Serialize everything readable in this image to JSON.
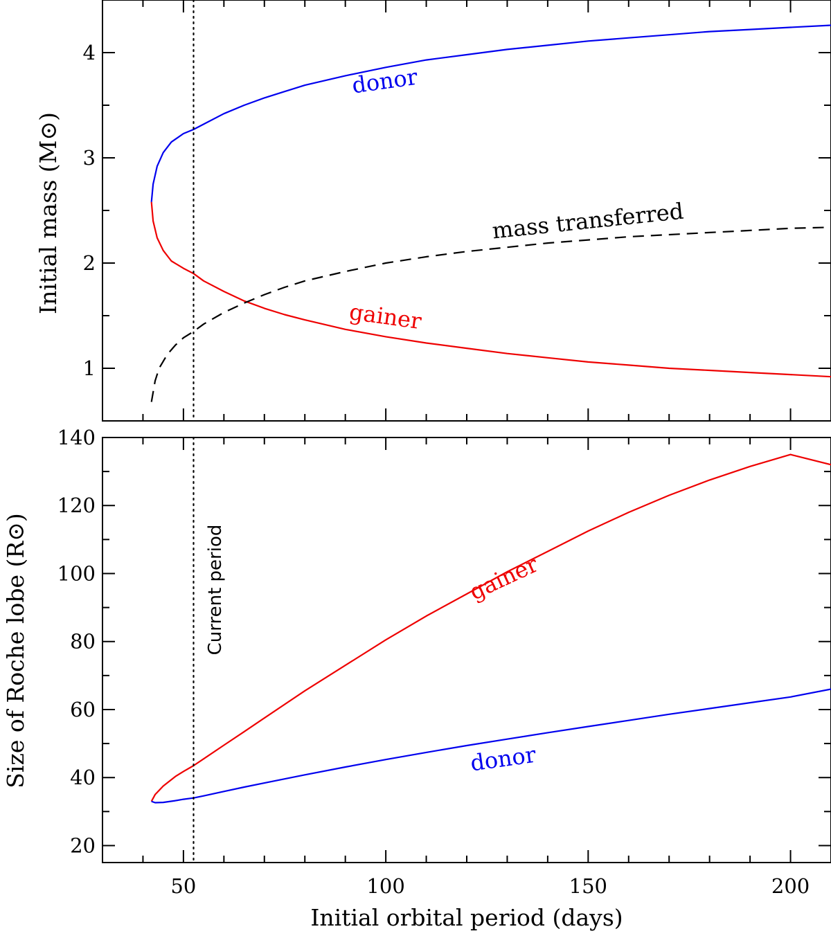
{
  "chart_data": [
    {
      "type": "line",
      "panel": "top",
      "xlabel": "Initial orbital period (days)",
      "ylabel": "Initial mass (M⊙)",
      "xlim": [
        30,
        210
      ],
      "ylim": [
        0.5,
        4.5
      ],
      "yticks": [
        1,
        2,
        3,
        4
      ],
      "ytick_labels": [
        "1",
        "2",
        "3",
        "4"
      ],
      "series": [
        {
          "name": "donor",
          "color": "#0000ee",
          "style": "solid",
          "label": "donor",
          "x": [
            42.1,
            42.5,
            43.5,
            45,
            47,
            50,
            52.5,
            55,
            60,
            65,
            70,
            75,
            80,
            90,
            100,
            110,
            120,
            130,
            140,
            150,
            160,
            170,
            180,
            190,
            200,
            210
          ],
          "y": [
            2.58,
            2.75,
            2.92,
            3.05,
            3.15,
            3.23,
            3.27,
            3.32,
            3.42,
            3.5,
            3.57,
            3.63,
            3.69,
            3.78,
            3.86,
            3.93,
            3.98,
            4.03,
            4.07,
            4.11,
            4.14,
            4.17,
            4.2,
            4.22,
            4.24,
            4.26
          ]
        },
        {
          "name": "gainer",
          "color": "#ee0000",
          "style": "solid",
          "label": "gainer",
          "x": [
            42.1,
            42.5,
            43.5,
            45,
            47,
            50,
            52.5,
            55,
            60,
            65,
            70,
            75,
            80,
            90,
            100,
            110,
            120,
            130,
            140,
            150,
            160,
            170,
            180,
            190,
            200,
            210
          ],
          "y": [
            2.58,
            2.4,
            2.24,
            2.12,
            2.02,
            1.95,
            1.9,
            1.83,
            1.73,
            1.64,
            1.57,
            1.51,
            1.46,
            1.37,
            1.3,
            1.24,
            1.19,
            1.14,
            1.1,
            1.06,
            1.03,
            1.0,
            0.98,
            0.96,
            0.94,
            0.92
          ]
        },
        {
          "name": "mass transferred",
          "color": "#000000",
          "style": "dashed",
          "label": "mass transferred",
          "x": [
            42.1,
            43,
            44,
            46,
            48,
            50,
            52.5,
            55,
            60,
            65,
            70,
            75,
            80,
            90,
            100,
            110,
            120,
            130,
            140,
            150,
            160,
            170,
            180,
            190,
            200,
            210
          ],
          "y": [
            0.68,
            0.88,
            1.0,
            1.13,
            1.22,
            1.29,
            1.35,
            1.42,
            1.53,
            1.62,
            1.7,
            1.77,
            1.83,
            1.92,
            2.0,
            2.06,
            2.11,
            2.15,
            2.19,
            2.22,
            2.25,
            2.27,
            2.29,
            2.31,
            2.33,
            2.34
          ]
        }
      ],
      "vline": {
        "x": 52.5,
        "style": "dotted"
      }
    },
    {
      "type": "line",
      "panel": "bottom",
      "xlabel": "Initial orbital period (days)",
      "ylabel": "Size of Roche lobe (R⊙)",
      "xlim": [
        30,
        210
      ],
      "ylim": [
        15,
        140
      ],
      "xticks": [
        50,
        100,
        150,
        200
      ],
      "xtick_labels": [
        "50",
        "100",
        "150",
        "200"
      ],
      "yticks": [
        20,
        40,
        60,
        80,
        100,
        120,
        140
      ],
      "ytick_labels": [
        "20",
        "40",
        "60",
        "80",
        "100",
        "120",
        "140"
      ],
      "series": [
        {
          "name": "gainer",
          "color": "#ee0000",
          "style": "solid",
          "label": "gainer",
          "x": [
            42.1,
            43,
            45,
            48,
            50,
            52.5,
            55,
            60,
            65,
            70,
            80,
            90,
            100,
            110,
            120,
            130,
            140,
            150,
            160,
            170,
            180,
            190,
            200,
            210
          ],
          "y": [
            33.0,
            35.0,
            37.5,
            40.3,
            41.8,
            43.5,
            45.5,
            49.5,
            53.5,
            57.5,
            65.5,
            73.0,
            80.5,
            87.5,
            94.0,
            100.5,
            106.5,
            112.5,
            118.0,
            123.0,
            127.5,
            131.5,
            135.0,
            132.0
          ]
        },
        {
          "name": "donor",
          "color": "#0000ee",
          "style": "solid",
          "label": "donor",
          "x": [
            42.1,
            43,
            45,
            48,
            50,
            52.5,
            55,
            60,
            65,
            70,
            80,
            90,
            100,
            110,
            120,
            130,
            140,
            150,
            160,
            170,
            180,
            190,
            200,
            210
          ],
          "y": [
            33.0,
            32.6,
            32.7,
            33.2,
            33.6,
            34.0,
            34.6,
            35.9,
            37.2,
            38.4,
            40.8,
            43.1,
            45.3,
            47.4,
            49.4,
            51.3,
            53.2,
            55.0,
            56.8,
            58.6,
            60.3,
            62.0,
            63.7,
            66.0
          ]
        }
      ],
      "vline": {
        "x": 52.5,
        "style": "dotted",
        "label": "Current period"
      }
    }
  ]
}
